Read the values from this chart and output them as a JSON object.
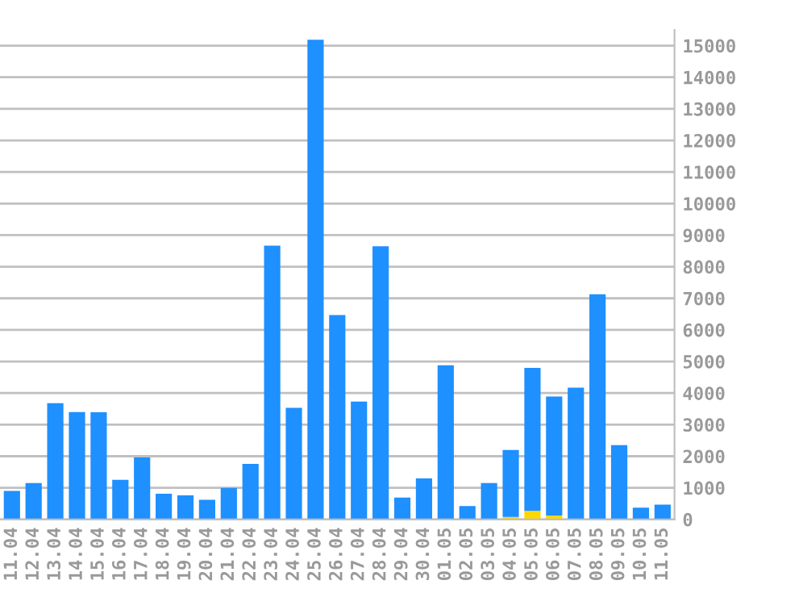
{
  "chart_data": {
    "type": "bar",
    "stacked": true,
    "categories": [
      "11.04",
      "12.04",
      "13.04",
      "14.04",
      "15.04",
      "16.04",
      "17.04",
      "18.04",
      "19.04",
      "20.04",
      "21.04",
      "22.04",
      "23.04",
      "24.04",
      "25.04",
      "26.04",
      "27.04",
      "28.04",
      "29.04",
      "30.04",
      "01.05",
      "02.05",
      "03.05",
      "04.05",
      "05.05",
      "06.05",
      "07.05",
      "08.05",
      "09.05",
      "10.05",
      "11.05"
    ],
    "series": [
      {
        "color": "#ffd700",
        "values": [
          null,
          null,
          null,
          null,
          null,
          null,
          null,
          null,
          null,
          null,
          null,
          null,
          null,
          null,
          null,
          null,
          null,
          null,
          null,
          null,
          null,
          null,
          null,
          80,
          270,
          120,
          null,
          null,
          null,
          null,
          null
        ]
      },
      {
        "color": "#1e90ff",
        "values": [
          900,
          1150,
          3680,
          3400,
          3390,
          1250,
          1960,
          810,
          760,
          620,
          1000,
          1760,
          8670,
          3530,
          15190,
          6470,
          3730,
          8650,
          690,
          1300,
          4880,
          420,
          1150,
          2120,
          4530,
          3770,
          4170,
          7130,
          2350,
          370,
          470
        ]
      }
    ],
    "ylim": [
      0,
      15500
    ],
    "yticks": [
      0,
      1000,
      2000,
      3000,
      4000,
      5000,
      6000,
      7000,
      8000,
      9000,
      10000,
      11000,
      12000,
      13000,
      14000,
      15000
    ],
    "grid": "y",
    "legend": false
  }
}
